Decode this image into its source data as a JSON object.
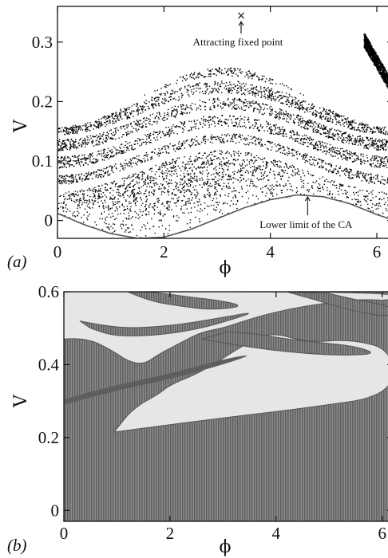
{
  "chart_data": [
    {
      "type": "scatter",
      "panel_label": "(a)",
      "xlabel": "ϕ",
      "ylabel": "V",
      "xlim": [
        0,
        6.3
      ],
      "ylim": [
        -0.03,
        0.36
      ],
      "xticks": [
        0,
        2,
        4,
        6
      ],
      "xtick_labels": [
        "0",
        "2",
        "4",
        "6"
      ],
      "yticks": [
        0,
        0.1,
        0.2,
        0.3
      ],
      "ytick_labels": [
        "0",
        "0.1",
        "0.2",
        "0.3"
      ],
      "grid": false,
      "lower_limit_curve": {
        "x": [
          0,
          0.5,
          1.0,
          1.5,
          2.0,
          2.5,
          3.0,
          3.5,
          4.0,
          4.5,
          5.0,
          5.5,
          6.0,
          6.3
        ],
        "y": [
          0.012,
          -0.007,
          -0.022,
          -0.03,
          -0.028,
          -0.015,
          0.003,
          0.021,
          0.035,
          0.043,
          0.04,
          0.028,
          0.01,
          0.001
        ]
      },
      "attracting_fixed_point": {
        "x": 3.45,
        "y": 0.345
      },
      "annotations": [
        {
          "text": "Attracting fixed point",
          "x": 3.45,
          "y": 0.345
        },
        {
          "text": "Lower limit of the CA",
          "x": 4.7,
          "y": 0.045
        }
      ]
    },
    {
      "type": "heatmap",
      "panel_label": "(b)",
      "xlabel": "ϕ",
      "ylabel": "V",
      "xlim": [
        0,
        6.2
      ],
      "ylim": [
        -0.03,
        0.6
      ],
      "xticks": [
        0,
        2,
        4,
        6
      ],
      "xtick_labels": [
        "0",
        "2",
        "4",
        "6"
      ],
      "yticks": [
        0,
        0.2,
        0.4,
        0.6
      ],
      "ytick_labels": [
        "0",
        "0.2",
        "0.4",
        "0.6"
      ],
      "grid": false,
      "regions": [
        {
          "name": "dark-basin",
          "color": "#7a7a7a"
        },
        {
          "name": "light-basin",
          "color": "#e6e6e6"
        }
      ]
    }
  ]
}
